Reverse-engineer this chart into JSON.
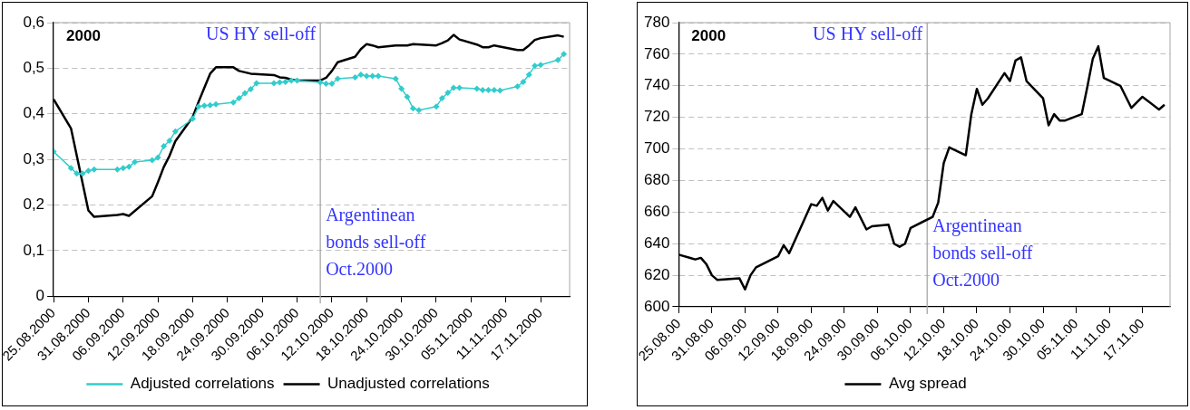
{
  "chart_data": [
    {
      "type": "line",
      "grid": "y",
      "legend": "bottom",
      "xlim": [
        "2000-08-25",
        "2000-11-22"
      ],
      "xticks": [
        {
          "value": "2000-08-25",
          "label": "25.08.2000"
        },
        {
          "value": "2000-08-31",
          "label": "31.08.2000"
        },
        {
          "value": "2000-09-06",
          "label": "06.09.2000"
        },
        {
          "value": "2000-09-12",
          "label": "12.09.2000"
        },
        {
          "value": "2000-09-18",
          "label": "18.09.2000"
        },
        {
          "value": "2000-09-24",
          "label": "24.09.2000"
        },
        {
          "value": "2000-09-30",
          "label": "30.09.2000"
        },
        {
          "value": "2000-10-06",
          "label": "06.10.2000"
        },
        {
          "value": "2000-10-12",
          "label": "12.10.2000"
        },
        {
          "value": "2000-10-18",
          "label": "18.10.2000"
        },
        {
          "value": "2000-10-24",
          "label": "24.10.2000"
        },
        {
          "value": "2000-10-30",
          "label": "30.10.2000"
        },
        {
          "value": "2000-11-05",
          "label": "05.11.2000"
        },
        {
          "value": "2000-11-11",
          "label": "11.11.2000"
        },
        {
          "value": "2000-11-17",
          "label": "17.11.2000"
        }
      ],
      "ylim": [
        0,
        0.6
      ],
      "yticks": [
        0,
        {
          "value": 0.1,
          "label": "0,1"
        },
        {
          "value": 0.2,
          "label": "0,2"
        },
        {
          "value": 0.3,
          "label": "0,3"
        },
        {
          "value": 0.4,
          "label": "0,4"
        },
        {
          "value": 0.5,
          "label": "0,5"
        },
        {
          "value": 0.6,
          "label": "0,6"
        }
      ],
      "ref_lines": [
        {
          "axis": "x",
          "value": "2000-10-10",
          "color": "#a6a6a6"
        }
      ],
      "annotations": [
        "2000",
        "US HY sell-off",
        "Argentinean\nbonds sell-off\nOct.2000"
      ],
      "series": [
        {
          "name": "Adjusted correlations",
          "color": "#33cccc",
          "marker": "diamond",
          "x": [
            "2000-08-25",
            "2000-08-28",
            "2000-08-29",
            "2000-08-30",
            "2000-08-31",
            "2000-09-01",
            "2000-09-05",
            "2000-09-06",
            "2000-09-07",
            "2000-09-08",
            "2000-09-11",
            "2000-09-12",
            "2000-09-13",
            "2000-09-14",
            "2000-09-15",
            "2000-09-18",
            "2000-09-19",
            "2000-09-20",
            "2000-09-21",
            "2000-09-22",
            "2000-09-25",
            "2000-09-26",
            "2000-09-27",
            "2000-09-28",
            "2000-09-29",
            "2000-10-02",
            "2000-10-03",
            "2000-10-04",
            "2000-10-05",
            "2000-10-06",
            "2000-10-10",
            "2000-10-11",
            "2000-10-12",
            "2000-10-13",
            "2000-10-16",
            "2000-10-17",
            "2000-10-18",
            "2000-10-19",
            "2000-10-20",
            "2000-10-23",
            "2000-10-24",
            "2000-10-25",
            "2000-10-26",
            "2000-10-27",
            "2000-10-30",
            "2000-10-31",
            "2000-11-01",
            "2000-11-02",
            "2000-11-03",
            "2000-11-06",
            "2000-11-07",
            "2000-11-08",
            "2000-11-09",
            "2000-11-10",
            "2000-11-13",
            "2000-11-14",
            "2000-11-15",
            "2000-11-16",
            "2000-11-17",
            "2000-11-20",
            "2000-11-21"
          ],
          "values": [
            0.317,
            0.281,
            0.269,
            0.269,
            0.275,
            0.278,
            0.278,
            0.281,
            0.284,
            0.294,
            0.298,
            0.304,
            0.329,
            0.341,
            0.361,
            0.389,
            0.416,
            0.418,
            0.419,
            0.421,
            0.425,
            0.434,
            0.445,
            0.454,
            0.467,
            0.467,
            0.469,
            0.47,
            0.473,
            0.473,
            0.469,
            0.466,
            0.466,
            0.477,
            0.48,
            0.486,
            0.483,
            0.483,
            0.483,
            0.477,
            0.455,
            0.437,
            0.412,
            0.408,
            0.416,
            0.434,
            0.446,
            0.457,
            0.457,
            0.455,
            0.452,
            0.452,
            0.452,
            0.451,
            0.46,
            0.47,
            0.486,
            0.505,
            0.507,
            0.518,
            0.531
          ]
        },
        {
          "name": "Unadjusted correlations",
          "color": "#000000",
          "x": [
            "2000-08-25",
            "2000-08-28",
            "2000-08-31",
            "2000-09-01",
            "2000-09-05",
            "2000-09-06",
            "2000-09-07",
            "2000-09-11",
            "2000-09-12",
            "2000-09-13",
            "2000-09-14",
            "2000-09-15",
            "2000-09-18",
            "2000-09-19",
            "2000-09-20",
            "2000-09-21",
            "2000-09-22",
            "2000-09-25",
            "2000-09-26",
            "2000-09-28",
            "2000-10-02",
            "2000-10-03",
            "2000-10-04",
            "2000-10-05",
            "2000-10-06",
            "2000-10-10",
            "2000-10-11",
            "2000-10-12",
            "2000-10-13",
            "2000-10-16",
            "2000-10-17",
            "2000-10-18",
            "2000-10-19",
            "2000-10-20",
            "2000-10-23",
            "2000-10-25",
            "2000-10-26",
            "2000-10-30",
            "2000-10-31",
            "2000-11-01",
            "2000-11-02",
            "2000-11-03",
            "2000-11-06",
            "2000-11-07",
            "2000-11-08",
            "2000-11-09",
            "2000-11-13",
            "2000-11-14",
            "2000-11-15",
            "2000-11-16",
            "2000-11-17",
            "2000-11-20",
            "2000-11-21"
          ],
          "values": [
            0.432,
            0.368,
            0.188,
            0.174,
            0.178,
            0.18,
            0.176,
            0.219,
            0.25,
            0.283,
            0.308,
            0.34,
            0.393,
            0.426,
            0.457,
            0.488,
            0.502,
            0.502,
            0.494,
            0.488,
            0.485,
            0.48,
            0.479,
            0.475,
            0.473,
            0.473,
            0.479,
            0.494,
            0.513,
            0.525,
            0.542,
            0.553,
            0.55,
            0.546,
            0.55,
            0.55,
            0.553,
            0.55,
            0.555,
            0.561,
            0.573,
            0.563,
            0.552,
            0.546,
            0.546,
            0.55,
            0.54,
            0.54,
            0.55,
            0.562,
            0.566,
            0.572,
            0.569
          ]
        }
      ]
    },
    {
      "type": "line",
      "grid": "y",
      "legend": "bottom",
      "xlim": [
        "2000-08-25",
        "2000-11-22"
      ],
      "xticks": [
        {
          "value": "2000-08-25",
          "label": "25.08.00"
        },
        {
          "value": "2000-08-31",
          "label": "31.08.00"
        },
        {
          "value": "2000-09-06",
          "label": "06.09.00"
        },
        {
          "value": "2000-09-12",
          "label": "12.09.00"
        },
        {
          "value": "2000-09-18",
          "label": "18.09.00"
        },
        {
          "value": "2000-09-24",
          "label": "24.09.00"
        },
        {
          "value": "2000-09-30",
          "label": "30.09.00"
        },
        {
          "value": "2000-10-06",
          "label": "06.10.00"
        },
        {
          "value": "2000-10-12",
          "label": "12.10.00"
        },
        {
          "value": "2000-10-18",
          "label": "18.10.00"
        },
        {
          "value": "2000-10-24",
          "label": "24.10.00"
        },
        {
          "value": "2000-10-30",
          "label": "30.10.00"
        },
        {
          "value": "2000-11-05",
          "label": "05.11.00"
        },
        {
          "value": "2000-11-11",
          "label": "11.11.00"
        },
        {
          "value": "2000-11-17",
          "label": "17.11.00"
        }
      ],
      "ylim": [
        600,
        780
      ],
      "yticks": [
        600,
        620,
        640,
        660,
        680,
        700,
        720,
        740,
        760,
        780
      ],
      "ref_lines": [
        {
          "axis": "x",
          "value": "2000-10-09",
          "color": "#a6a6a6"
        }
      ],
      "annotations": [
        "2000",
        "US HY sell-off",
        "Argentinean\nbonds sell-off\nOct.2000"
      ],
      "series": [
        {
          "name": "Avg spread",
          "color": "#000000",
          "x": [
            "2000-08-25",
            "2000-08-28",
            "2000-08-29",
            "2000-08-30",
            "2000-08-31",
            "2000-09-01",
            "2000-09-05",
            "2000-09-06",
            "2000-09-07",
            "2000-09-08",
            "2000-09-12",
            "2000-09-13",
            "2000-09-14",
            "2000-09-18",
            "2000-09-19",
            "2000-09-20",
            "2000-09-21",
            "2000-09-22",
            "2000-09-25",
            "2000-09-26",
            "2000-09-28",
            "2000-09-29",
            "2000-10-02",
            "2000-10-03",
            "2000-10-04",
            "2000-10-05",
            "2000-10-06",
            "2000-10-10",
            "2000-10-11",
            "2000-10-12",
            "2000-10-13",
            "2000-10-16",
            "2000-10-17",
            "2000-10-18",
            "2000-10-19",
            "2000-10-20",
            "2000-10-23",
            "2000-10-24",
            "2000-10-25",
            "2000-10-26",
            "2000-10-27",
            "2000-10-30",
            "2000-10-31",
            "2000-11-01",
            "2000-11-02",
            "2000-11-03",
            "2000-11-06",
            "2000-11-07",
            "2000-11-08",
            "2000-11-09",
            "2000-11-10",
            "2000-11-13",
            "2000-11-15",
            "2000-11-17",
            "2000-11-20",
            "2000-11-21"
          ],
          "values": [
            633,
            630,
            631,
            627,
            620,
            617,
            618,
            611,
            620,
            625,
            632,
            639,
            634,
            665,
            664,
            669,
            661,
            667,
            657,
            663,
            649,
            651,
            652,
            640,
            638,
            640,
            650,
            657,
            666,
            691,
            701,
            696,
            722,
            738,
            728,
            732,
            748,
            743,
            756,
            758,
            743,
            732,
            715,
            722,
            718,
            718,
            722,
            739,
            757,
            765,
            745,
            740,
            726,
            733,
            725,
            728
          ]
        }
      ]
    }
  ]
}
